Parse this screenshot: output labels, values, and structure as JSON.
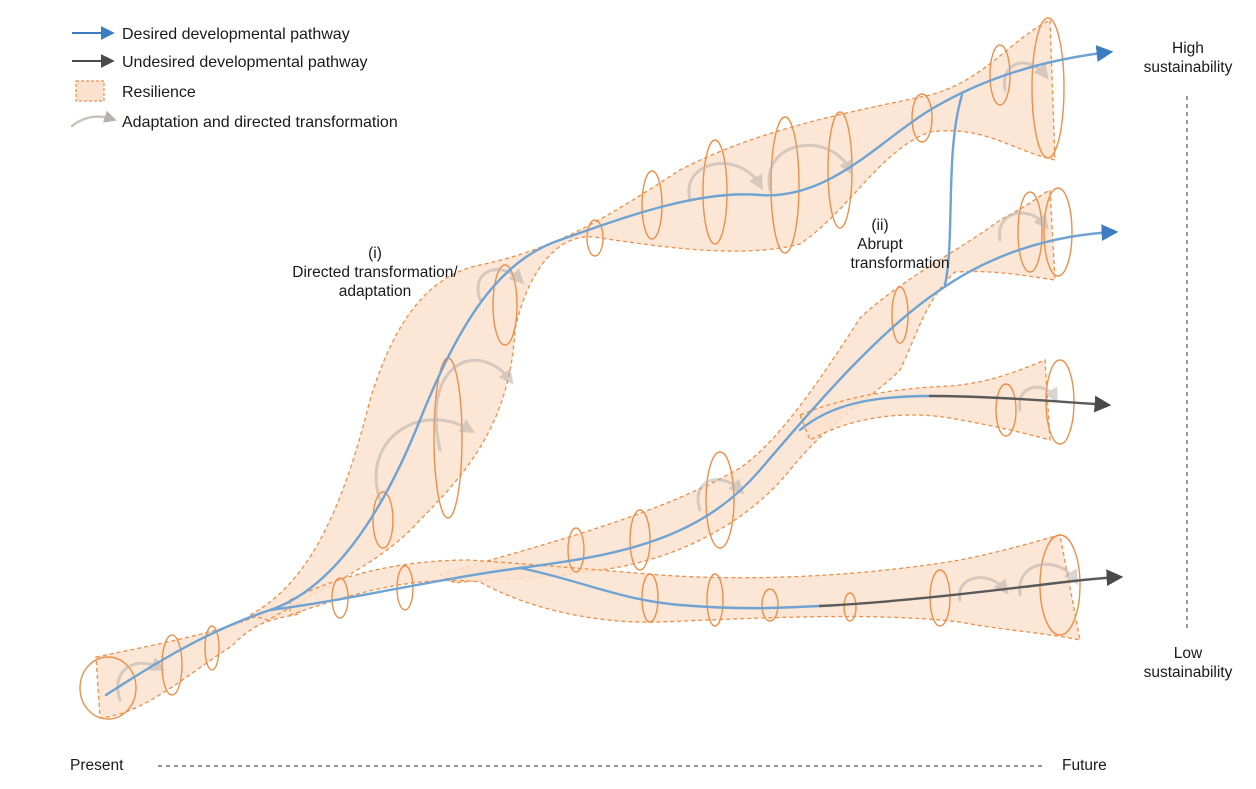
{
  "legend": {
    "desired": "Desired developmental pathway",
    "undesired": "Undesired developmental pathway",
    "resilience": "Resilience",
    "adaptation": "Adaptation and directed transformation"
  },
  "annotations": {
    "directed_transformation": [
      "(i)",
      "Directed transformation/",
      "adaptation"
    ],
    "abrupt_transformation": [
      "(ii)",
      "Abrupt",
      "transformation"
    ]
  },
  "axes": {
    "x_start": "Present",
    "x_end": "Future",
    "y_top": [
      "High",
      "sustainability"
    ],
    "y_bottom": [
      "Low",
      "sustainability"
    ]
  },
  "colors": {
    "desired": "#6fa3d2",
    "desired_arrow": "#3d7cc0",
    "undesired": "#5a5a5a",
    "envelope_fill": "#fbe2cf",
    "envelope_stroke": "#ec8f4a",
    "swirl": "#b9b1aa"
  }
}
